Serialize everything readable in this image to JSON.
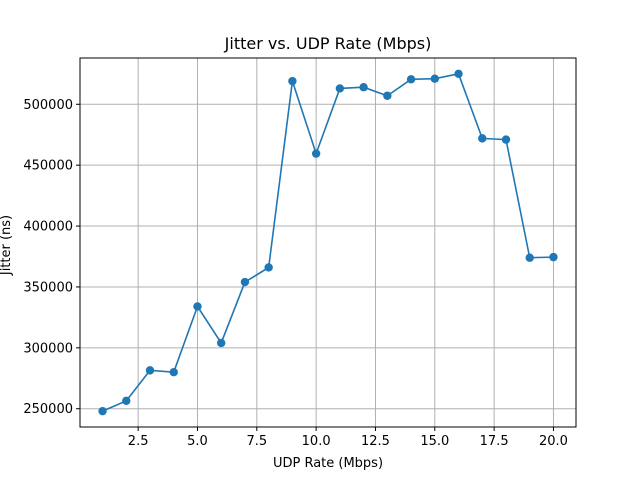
{
  "chart_data": {
    "type": "line",
    "title": "Jitter vs. UDP Rate (Mbps)",
    "xlabel": "UDP Rate (Mbps)",
    "ylabel": "Jitter (ns)",
    "xlim": [
      0.05,
      20.95
    ],
    "ylim": [
      235000,
      538000
    ],
    "grid": true,
    "xticks": [
      2.5,
      5.0,
      7.5,
      10.0,
      12.5,
      15.0,
      17.5,
      20.0
    ],
    "xtick_labels": [
      "2.5",
      "5.0",
      "7.5",
      "10.0",
      "12.5",
      "15.0",
      "17.5",
      "20.0"
    ],
    "yticks": [
      250000,
      300000,
      350000,
      400000,
      450000,
      500000
    ],
    "ytick_labels": [
      "250000",
      "300000",
      "350000",
      "400000",
      "450000",
      "500000"
    ],
    "series": [
      {
        "color": "#1f77b4",
        "marker": "circle",
        "x": [
          1,
          2,
          3,
          4,
          5,
          6,
          7,
          8,
          9,
          10,
          11,
          12,
          13,
          14,
          15,
          16,
          17,
          18,
          19,
          20
        ],
        "y": [
          248000,
          256500,
          281500,
          280000,
          334000,
          304000,
          354000,
          366000,
          519000,
          459500,
          513000,
          514000,
          507000,
          520500,
          521000,
          525000,
          472000,
          471000,
          374000,
          374500
        ]
      }
    ]
  }
}
